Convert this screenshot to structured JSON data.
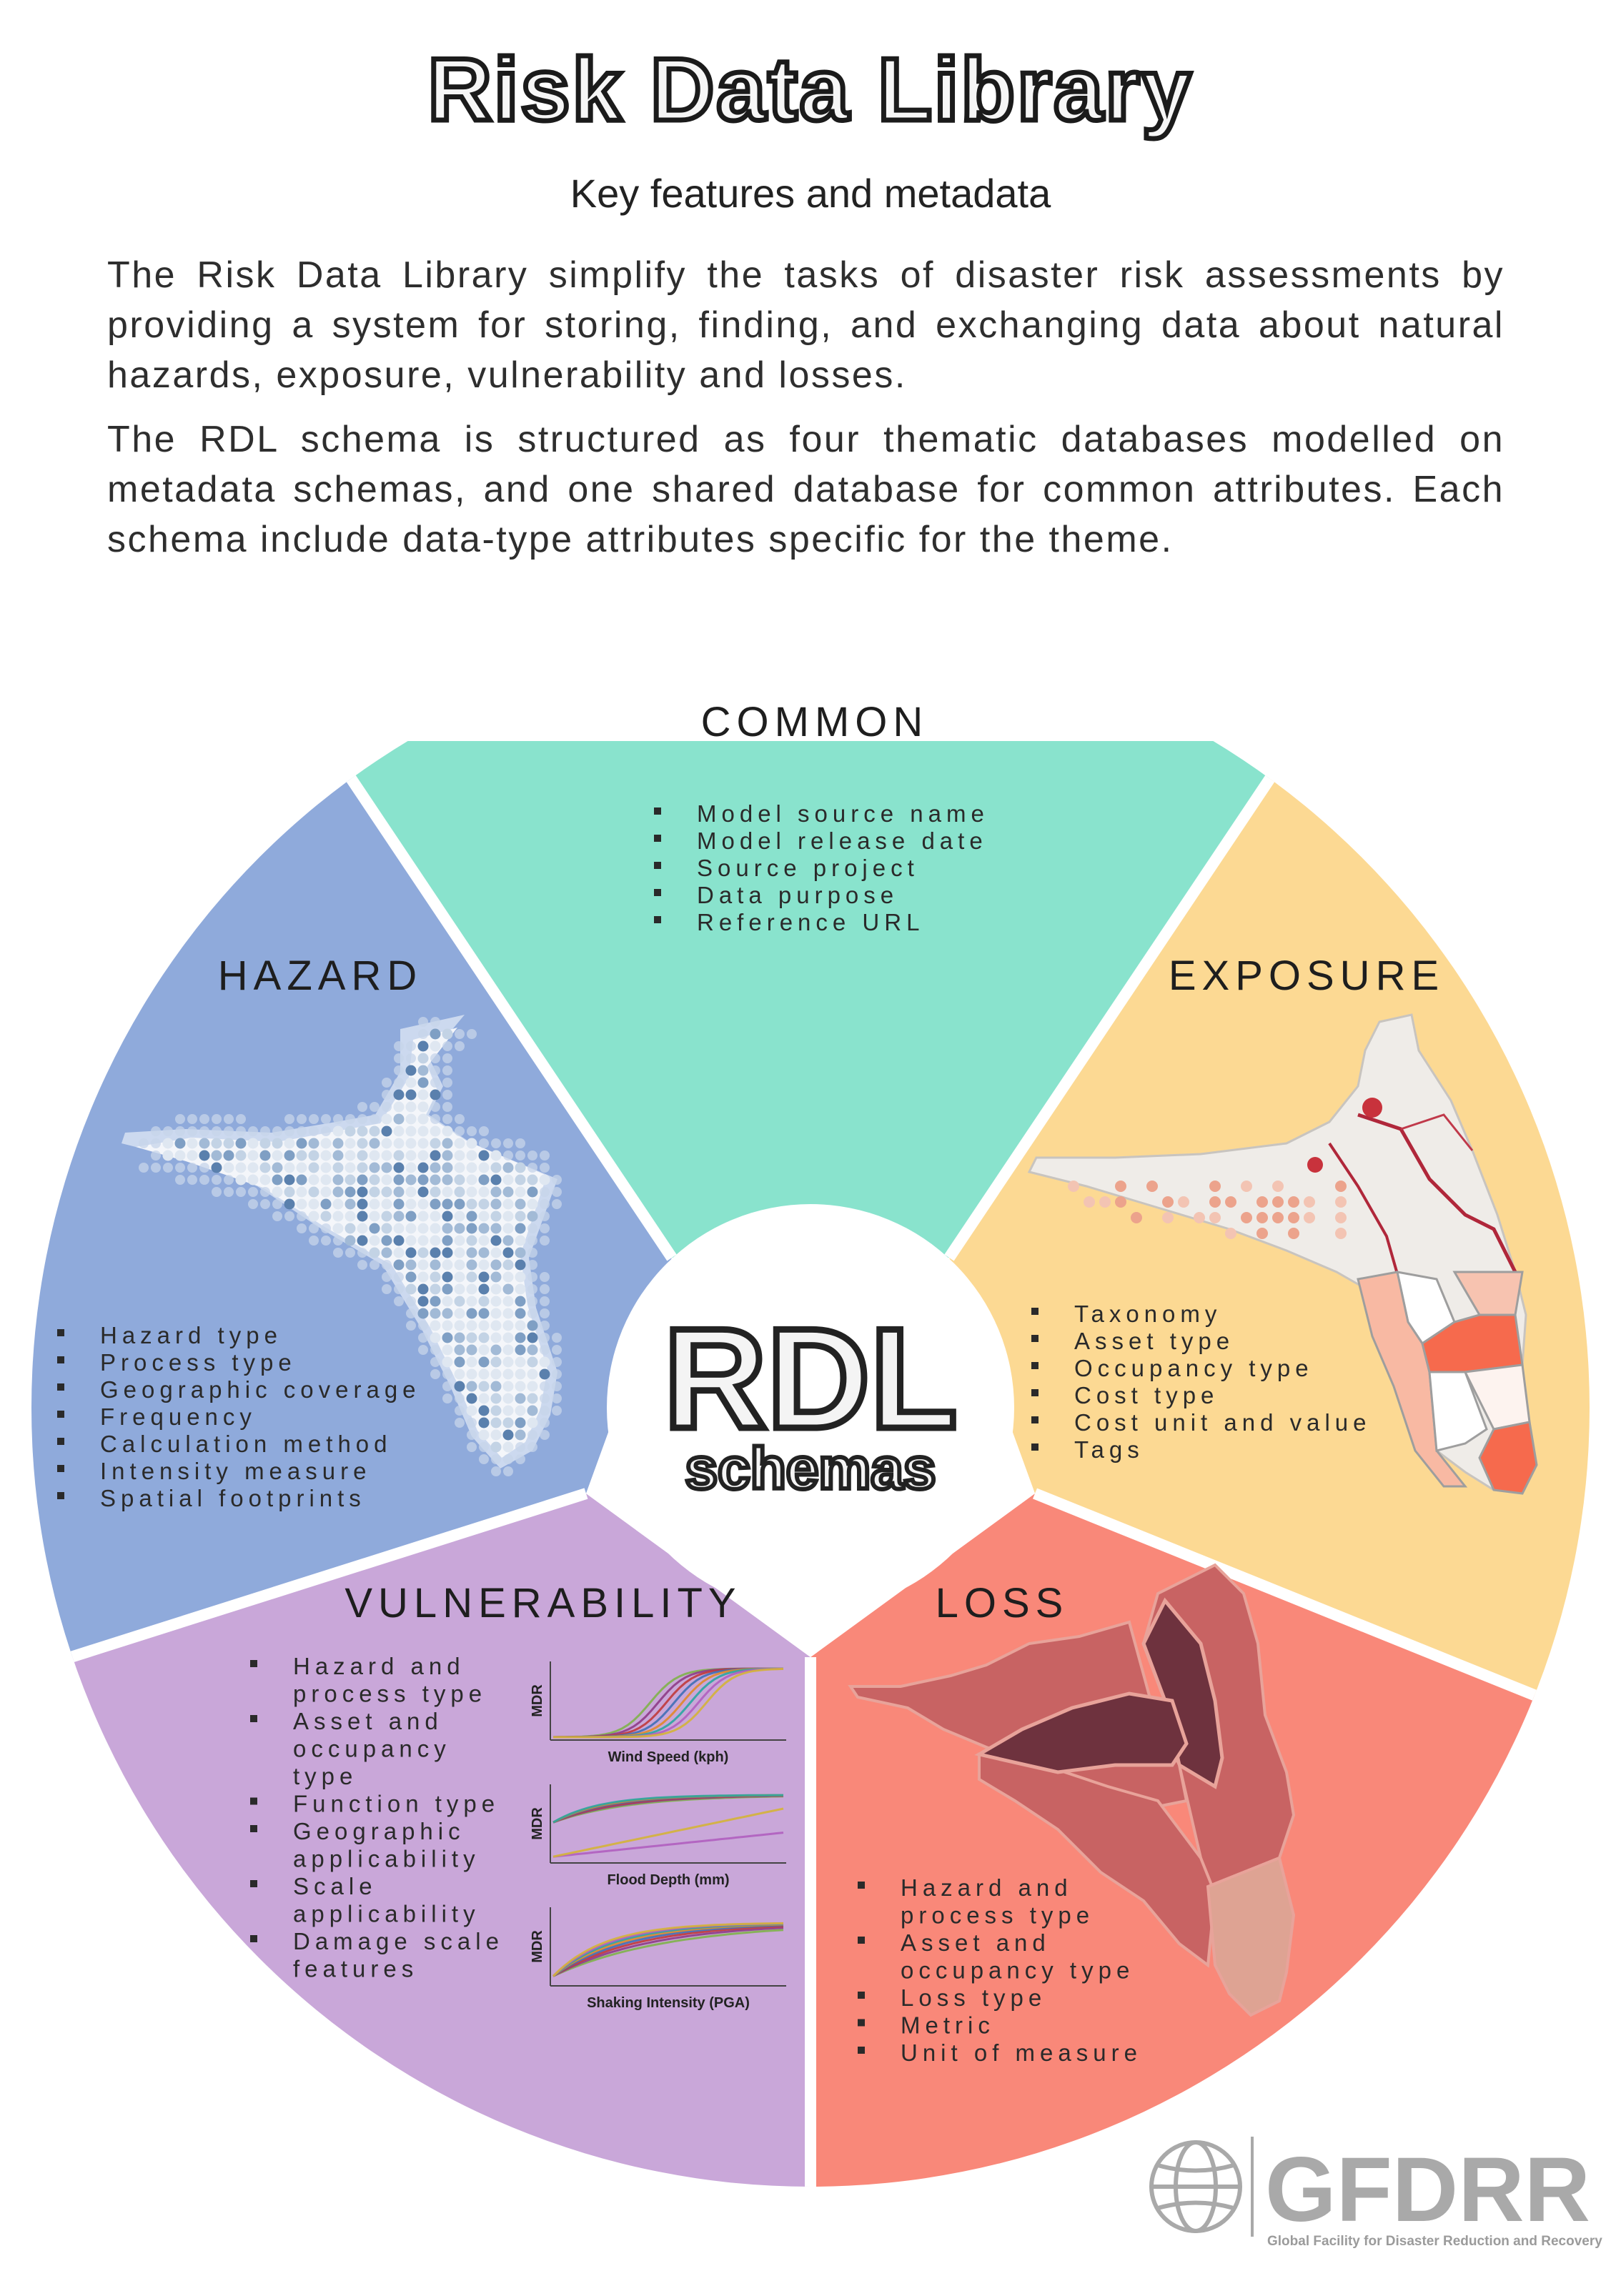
{
  "header": {
    "title": "Risk Data Library",
    "subtitle": "Key features and metadata",
    "paragraphs": [
      "The Risk Data Library simplify the tasks of disaster risk assessments by providing a system for storing, finding, and exchanging data about natural hazards, exposure, vulnerability and losses.",
      "The RDL schema is structured as four thematic databases modelled on metadata schemas, and one shared database for common attributes. Each schema include data-type attributes specific for the theme."
    ]
  },
  "center": {
    "line1": "RDL",
    "line2": "schemas"
  },
  "sections": {
    "common": {
      "title": "COMMON",
      "color": "#89e3cd",
      "items": [
        "Model source name",
        "Model release date",
        "Source project",
        "Data purpose",
        "Reference URL"
      ]
    },
    "hazard": {
      "title": "HAZARD",
      "color": "#8faadb",
      "items": [
        "Hazard  type",
        "Process type",
        "Geographic coverage",
        "Frequency",
        "Calculation method",
        "Intensity measure",
        "Spatial footprints"
      ]
    },
    "exposure": {
      "title": "EXPOSURE",
      "color": "#fcd993",
      "items": [
        "Taxonomy",
        "Asset type",
        "Occupancy type",
        "Cost type",
        "Cost unit and value",
        "Tags"
      ]
    },
    "vulnerability": {
      "title": "VULNERABILITY",
      "color": "#c9a7d9",
      "items": [
        "Hazard and",
        "process type",
        "Asset and",
        "occupancy",
        "type",
        "Function type",
        "Geographic",
        "applicability",
        "Scale",
        "applicability",
        "Damage scale",
        "features"
      ],
      "charts": [
        {
          "ylabel": "MDR",
          "xlabel": "Wind Speed (kph)"
        },
        {
          "ylabel": "MDR",
          "xlabel": "Flood Depth (mm)"
        },
        {
          "ylabel": "MDR",
          "xlabel": "Shaking Intensity (PGA)"
        }
      ]
    },
    "loss": {
      "title": "LOSS",
      "color": "#f98879",
      "items": [
        "Hazard and",
        "process type",
        "Asset and",
        "occupancy type",
        "Loss type",
        "Metric",
        "Unit of measure"
      ]
    }
  },
  "logo": {
    "text": "GFDRR",
    "tagline": "Global Facility for Disaster Reduction and Recovery"
  }
}
